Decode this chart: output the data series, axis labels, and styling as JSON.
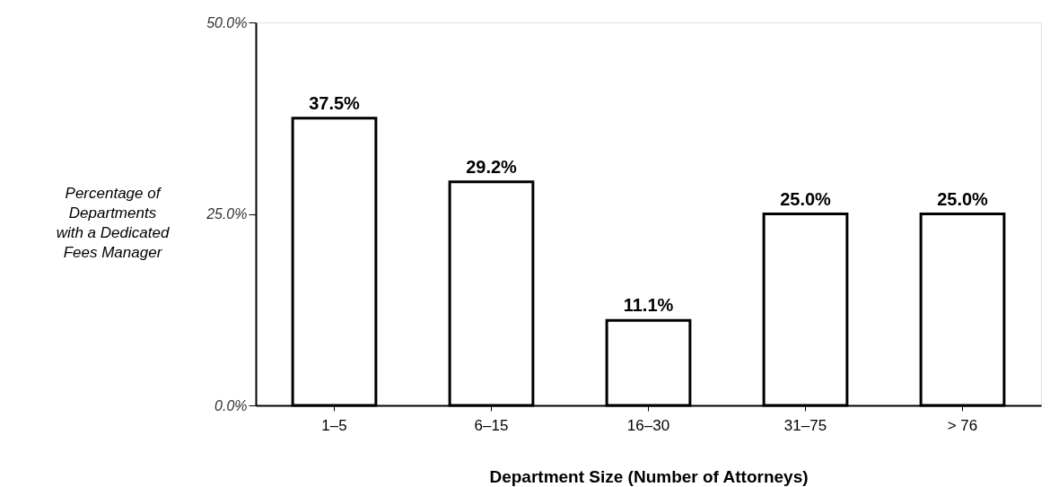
{
  "chart_data": {
    "type": "bar",
    "categories": [
      "1–5",
      "6–15",
      "16–30",
      "31–75",
      "> 76"
    ],
    "values": [
      37.5,
      29.2,
      11.1,
      25.0,
      25.0
    ],
    "value_labels": [
      "37.5%",
      "29.2%",
      "11.1%",
      "25.0%",
      "25.0%"
    ],
    "color": "#ffffff",
    "xlabel": "Department Size (Number of Attorneys)",
    "ylabel": "Percentage of\nDepartments\nwith a Dedicated\nFees Manager",
    "ylim": [
      0,
      50
    ],
    "yticks": [
      {
        "value": 0,
        "label": "0.0%"
      },
      {
        "value": 25,
        "label": "25.0%"
      },
      {
        "value": 50,
        "label": "50.0%"
      }
    ],
    "grid": false
  }
}
